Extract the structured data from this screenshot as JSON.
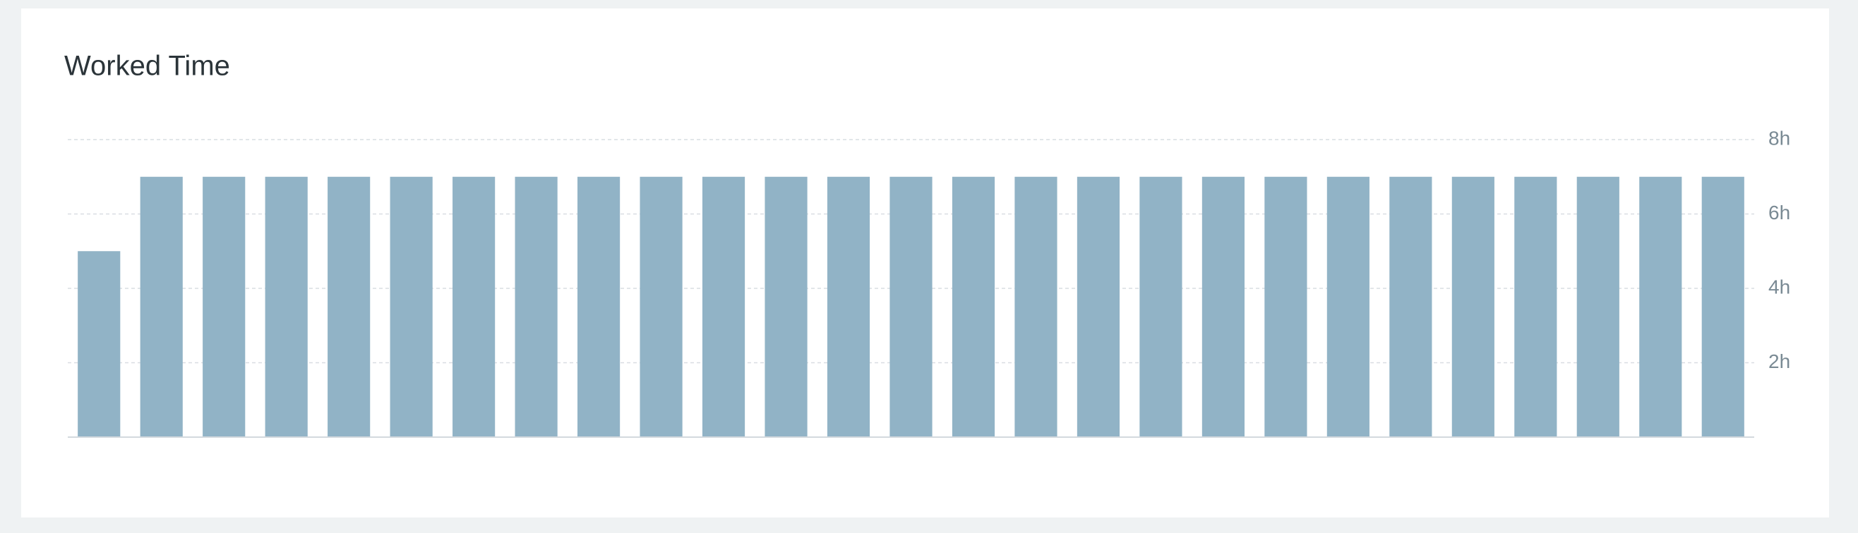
{
  "chart_data": {
    "type": "bar",
    "title": "Worked Time",
    "categories": [
      null,
      null,
      null,
      null,
      null,
      null,
      null,
      null,
      null,
      null,
      null,
      null,
      null,
      null,
      null,
      null,
      null,
      null,
      null,
      null,
      null,
      null,
      null,
      null,
      null,
      null,
      null
    ],
    "values": [
      5,
      7,
      7,
      7,
      7,
      7,
      7,
      7,
      7,
      7,
      7,
      7,
      7,
      7,
      7,
      7,
      7,
      7,
      7,
      7,
      7,
      7,
      7,
      7,
      7,
      7,
      7
    ],
    "color": "#91b3c6",
    "ylim": [
      0,
      8
    ],
    "yticks": [
      {
        "value": 2,
        "label": "2h"
      },
      {
        "value": 4,
        "label": "4h"
      },
      {
        "value": 6,
        "label": "6h"
      },
      {
        "value": 8,
        "label": "8h"
      }
    ],
    "grid": true
  }
}
